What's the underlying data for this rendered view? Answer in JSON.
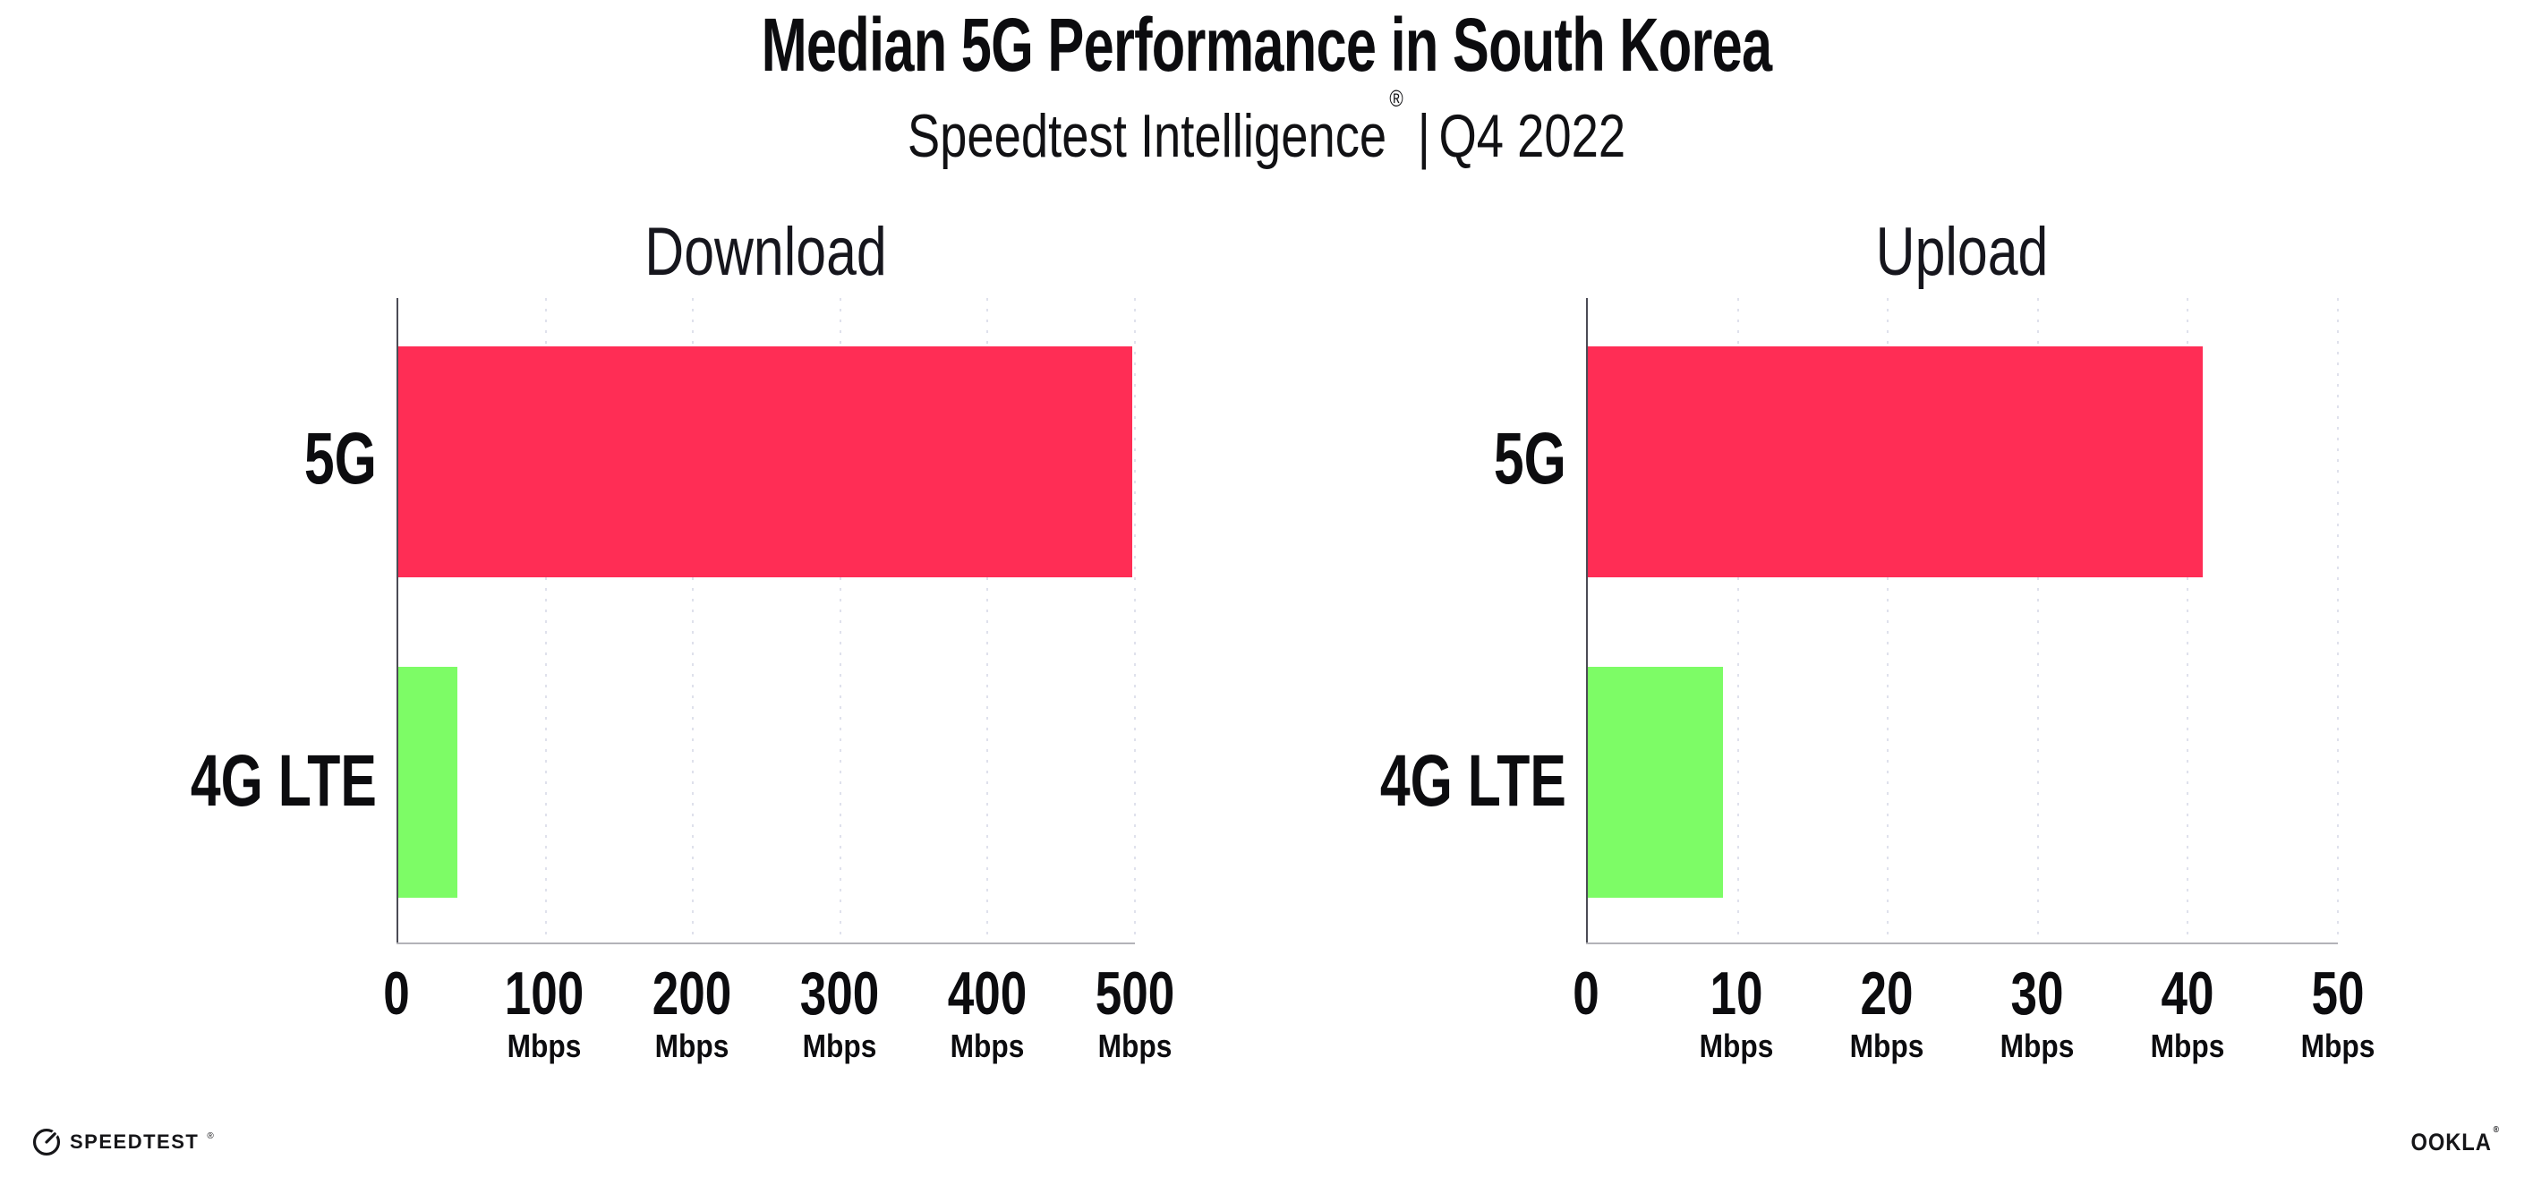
{
  "header": {
    "title": "Median 5G Performance in South Korea",
    "subtitle_product": "Speedtest Intelligence",
    "subtitle_reg": "®",
    "subtitle_separator": "|",
    "subtitle_period": "Q4 2022"
  },
  "chart_data": [
    {
      "type": "bar",
      "orientation": "horizontal",
      "title": "Download",
      "categories": [
        "5G",
        "4G LTE"
      ],
      "values": [
        498,
        40
      ],
      "unit": "Mbps",
      "xlim": [
        0,
        500
      ],
      "xticks": [
        0,
        100,
        200,
        300,
        400,
        500
      ],
      "tick_unit": "Mbps",
      "bar_colors": [
        "#ff2d55",
        "#7dfc66"
      ],
      "grid": "dotted-vertical",
      "legend": "none"
    },
    {
      "type": "bar",
      "orientation": "horizontal",
      "title": "Upload",
      "categories": [
        "5G",
        "4G LTE"
      ],
      "values": [
        41,
        9
      ],
      "unit": "Mbps",
      "xlim": [
        0,
        50
      ],
      "xticks": [
        0,
        10,
        20,
        30,
        40,
        50
      ],
      "tick_unit": "Mbps",
      "bar_colors": [
        "#ff2d55",
        "#7dfc66"
      ],
      "grid": "dotted-vertical",
      "legend": "none"
    }
  ],
  "footer": {
    "speedtest_logo_text": "SPEEDTEST",
    "speedtest_reg": "®",
    "ookla_logo_text": "OOKLA",
    "ookla_reg": "®"
  },
  "colors": {
    "accent_5g": "#ff2d55",
    "accent_4g": "#7dfc66",
    "y_axis": "#4b4b55",
    "x_axis": "#b3b3b8",
    "gridline": "#dfe1ec",
    "text": "#0c0c0f",
    "background": "#ffffff"
  }
}
